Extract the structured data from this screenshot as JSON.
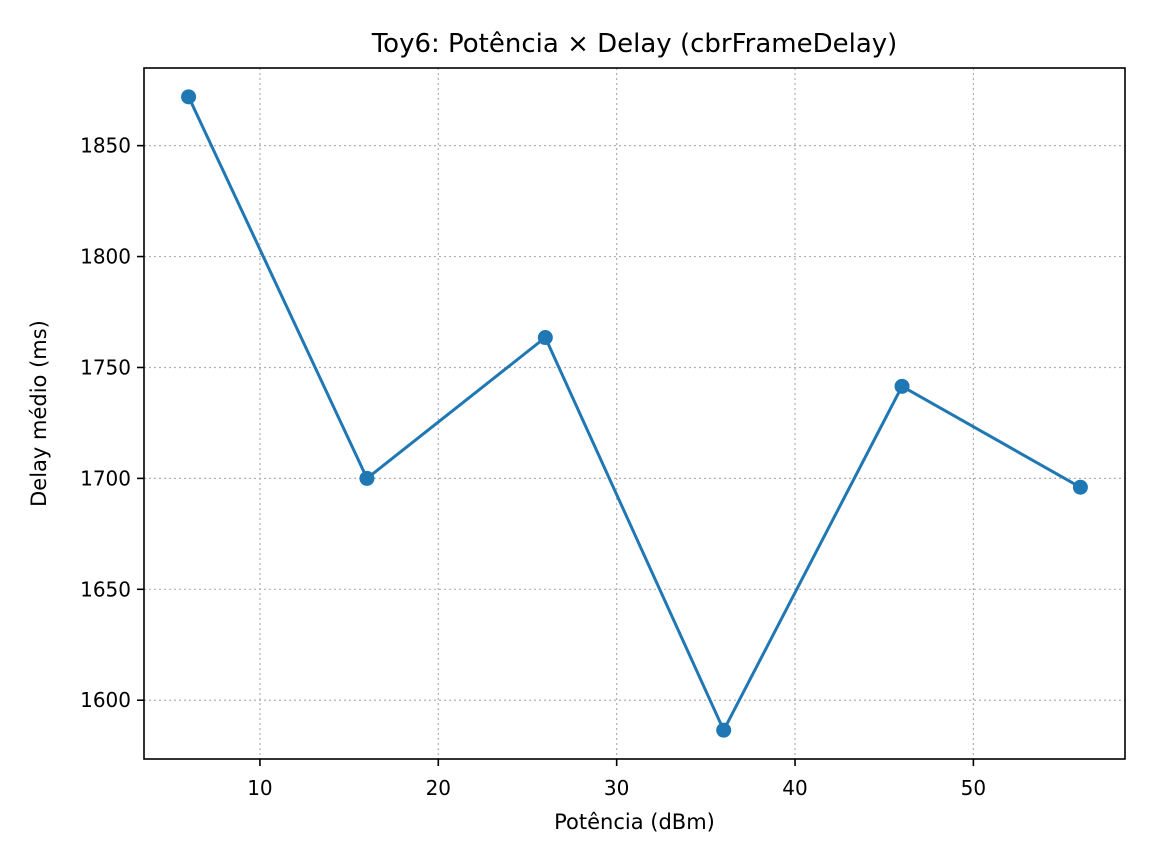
{
  "chart_data": {
    "type": "line",
    "title": "Toy6: Potência × Delay (cbrFrameDelay)",
    "xlabel": "Potência (dBm)",
    "ylabel": "Delay médio (ms)",
    "x": [
      6,
      16,
      26,
      36,
      46,
      56
    ],
    "series": [
      {
        "values": [
          1872,
          1700,
          1763.5,
          1586.5,
          1741.5,
          1696
        ],
        "color": "#1f77b4",
        "marker": "circle"
      }
    ],
    "xlim": [
      3.5,
      58.5
    ],
    "ylim": [
      1573.5,
      1885
    ],
    "xticks": [
      10,
      20,
      30,
      40,
      50
    ],
    "yticks": [
      1600,
      1650,
      1700,
      1750,
      1800,
      1850
    ],
    "grid": true
  }
}
